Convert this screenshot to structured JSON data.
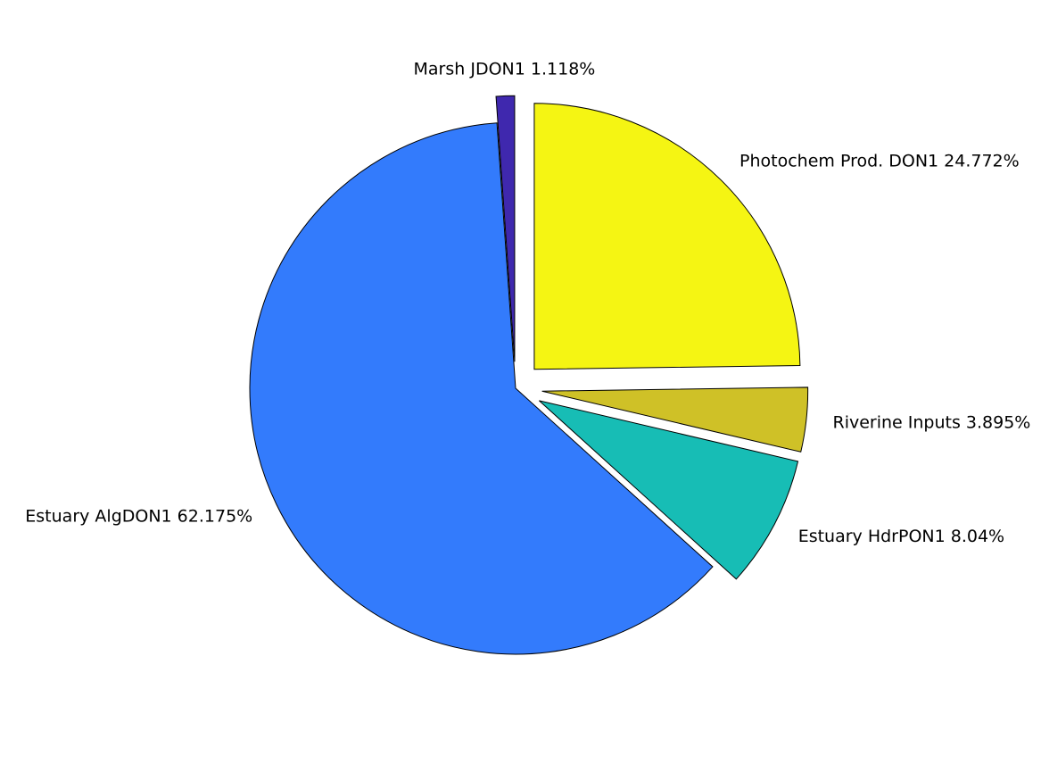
{
  "chart_data": {
    "type": "pie",
    "title": "",
    "slices": [
      {
        "label": "Photochem Prod. DON1",
        "percent_text": "24.772%",
        "value": 24.772,
        "color": "#f5f513",
        "exploded": true
      },
      {
        "label": "Riverine Inputs",
        "percent_text": "3.895%",
        "value": 3.895,
        "color": "#cfc127",
        "exploded": true
      },
      {
        "label": "Estuary HdrPON1",
        "percent_text": "8.04%",
        "value": 8.04,
        "color": "#17bdb5",
        "exploded": true
      },
      {
        "label": "Estuary AlgDON1",
        "percent_text": "62.175%",
        "value": 62.175,
        "color": "#337bfc",
        "exploded": false
      },
      {
        "label": "Marsh JDON1",
        "percent_text": "1.118%",
        "value": 1.118,
        "color": "#3f28ae",
        "exploded": true
      }
    ]
  }
}
